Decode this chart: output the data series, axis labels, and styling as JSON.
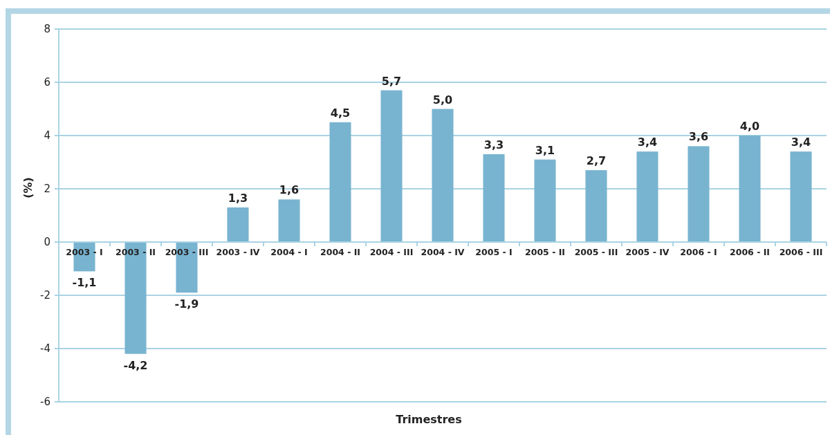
{
  "chart_data": {
    "type": "bar",
    "xlabel": "Trimestres",
    "ylabel": "(%)",
    "categories": [
      "2003 - I",
      "2003 - II",
      "2003 - III",
      "2003 - IV",
      "2004 - I",
      "2004 - II",
      "2004 - III",
      "2004 - IV",
      "2005 - I",
      "2005 - II",
      "2005 - III",
      "2005 - IV",
      "2006 - I",
      "2006 - II",
      "2006 - III"
    ],
    "values": [
      -1.1,
      -4.2,
      -1.9,
      1.3,
      1.6,
      4.5,
      5.7,
      5.0,
      3.3,
      3.1,
      2.7,
      3.4,
      3.6,
      4.0,
      3.4
    ],
    "value_labels": [
      "-1,1",
      "-4,2",
      "-1,9",
      "1,3",
      "1,6",
      "4,5",
      "5,7",
      "5,0",
      "3,3",
      "3,1",
      "2,7",
      "3,4",
      "3,6",
      "4,0",
      "3,4"
    ],
    "color": "#78b4d0",
    "ylim": [
      -6,
      8
    ],
    "yticks": [
      -6,
      -4,
      -2,
      0,
      2,
      4,
      6,
      8
    ],
    "grid": "y"
  }
}
